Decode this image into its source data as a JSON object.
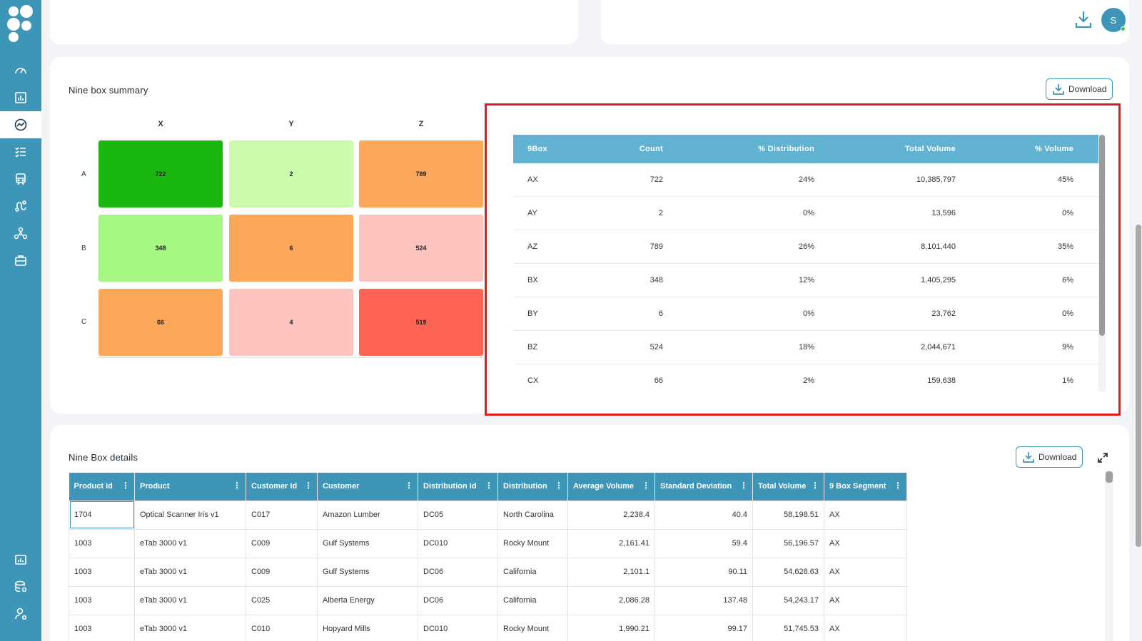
{
  "sidebar": {
    "icons": [
      "dashboard-gauge-icon",
      "bar-report-icon",
      "analytics-trend-icon",
      "checklist-icon",
      "transport-icon",
      "route-icon",
      "network-nodes-icon",
      "briefcase-icon",
      "chart-board-icon",
      "database-settings-icon",
      "user-settings-icon"
    ],
    "active_index": 2
  },
  "header": {
    "avatar_initial": "S"
  },
  "nine_box": {
    "title": "Nine box summary",
    "download_label": "Download",
    "columns": [
      "X",
      "Y",
      "Z"
    ],
    "rows": [
      "A",
      "B",
      "C"
    ],
    "cells": [
      [
        "722",
        "2",
        "789"
      ],
      [
        "348",
        "6",
        "524"
      ],
      [
        "66",
        "4",
        "519"
      ]
    ],
    "cell_colors": [
      [
        "#1ab80f",
        "#ccfcab",
        "#fda75b"
      ],
      [
        "#a6f684",
        "#fda75b",
        "#fdc3bf"
      ],
      [
        "#fda75b",
        "#fdc3bf",
        "#fd6353"
      ]
    ],
    "table": {
      "headers": [
        "9Box",
        "Count",
        "% Distribution",
        "Total Volume",
        "% Volume"
      ],
      "rows": [
        [
          "AX",
          "722",
          "24%",
          "10,385,797",
          "45%"
        ],
        [
          "AY",
          "2",
          "0%",
          "13,596",
          "0%"
        ],
        [
          "AZ",
          "789",
          "26%",
          "8,101,440",
          "35%"
        ],
        [
          "BX",
          "348",
          "12%",
          "1,405,295",
          "6%"
        ],
        [
          "BY",
          "6",
          "0%",
          "23,762",
          "0%"
        ],
        [
          "BZ",
          "524",
          "18%",
          "2,044,671",
          "9%"
        ],
        [
          "CX",
          "66",
          "2%",
          "159,638",
          "1%"
        ]
      ]
    }
  },
  "details": {
    "title": "Nine Box details",
    "download_label": "Download",
    "headers": [
      "Product Id",
      "Product",
      "Customer Id",
      "Customer",
      "Distribution Id",
      "Distribution",
      "Average Volume",
      "Standard Deviation",
      "Total Volume",
      "9 Box Segment"
    ],
    "rows": [
      [
        "1704",
        "Optical Scanner Iris v1",
        "C017",
        "Amazon Lumber",
        "DC05",
        "North Carolina",
        "2,238.4",
        "40.4",
        "58,198.51",
        "AX"
      ],
      [
        "1003",
        "eTab 3000 v1",
        "C009",
        "Gulf Systems",
        "DC010",
        "Rocky Mount",
        "2,161.41",
        "59.4",
        "56,196.57",
        "AX"
      ],
      [
        "1003",
        "eTab 3000 v1",
        "C009",
        "Gulf Systems",
        "DC06",
        "California",
        "2,101.1",
        "90.11",
        "54,628.63",
        "AX"
      ],
      [
        "1003",
        "eTab 3000 v1",
        "C025",
        "Alberta Energy",
        "DC06",
        "California",
        "2,086.28",
        "137.48",
        "54,243.17",
        "AX"
      ],
      [
        "1003",
        "eTab 3000 v1",
        "C010",
        "Hopyard Mills",
        "DC010",
        "Rocky Mount",
        "1,990.21",
        "99.17",
        "51,745.53",
        "AX"
      ]
    ]
  },
  "colors": {
    "brand": "#3d95b7",
    "table_header_light": "#62b3d2",
    "highlight": "#e01b1b"
  }
}
